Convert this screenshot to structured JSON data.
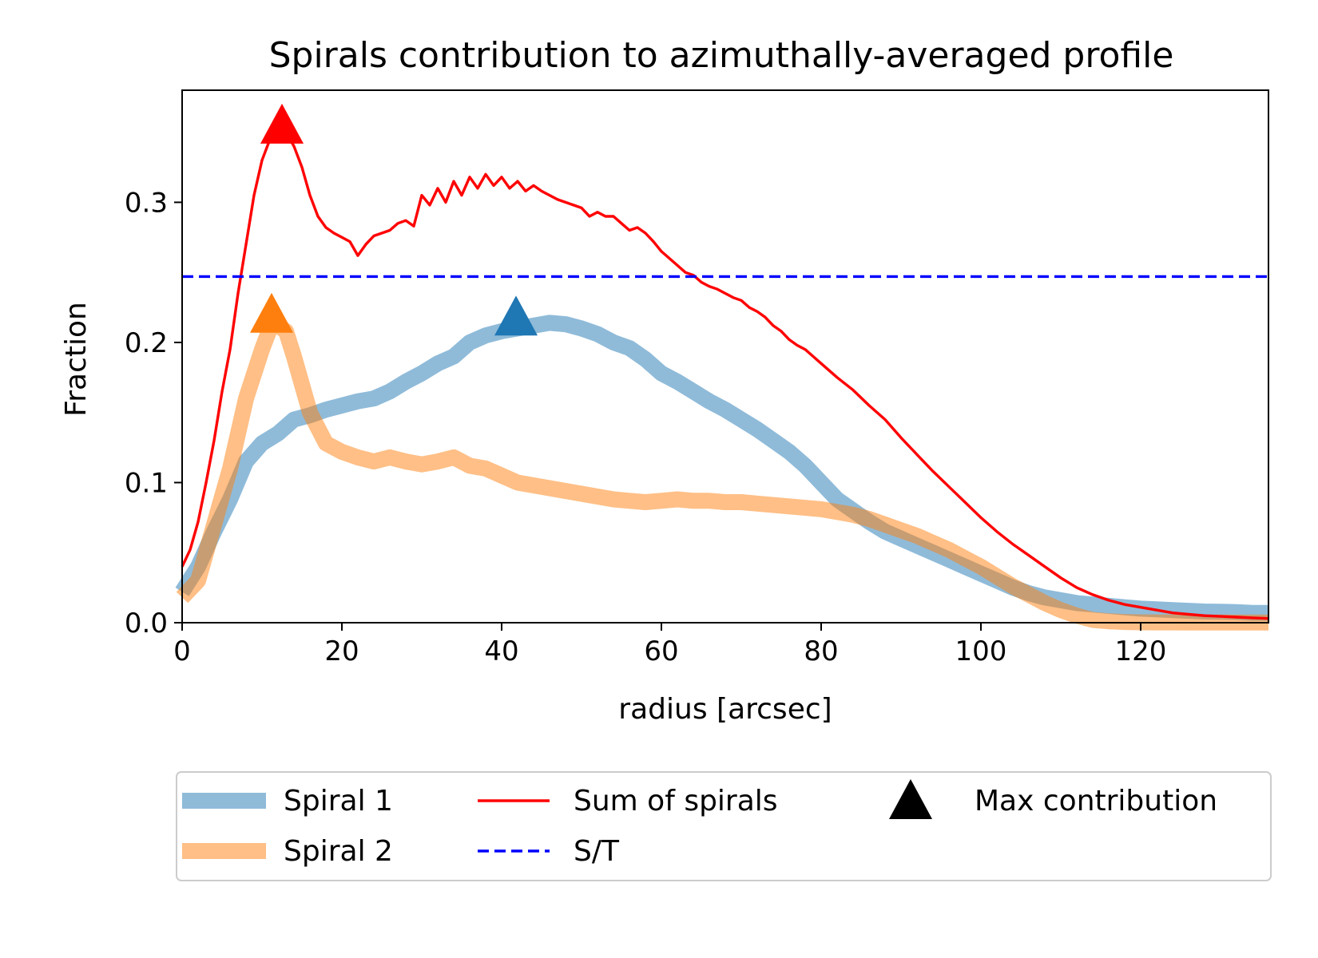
{
  "chart_data": {
    "type": "line",
    "title": "Spirals contribution to azimuthally-averaged profile",
    "xlabel": "radius [arcsec]",
    "ylabel": "Fraction",
    "xlim": [
      0,
      136
    ],
    "ylim": [
      0,
      0.38
    ],
    "x_ticks": [
      0,
      20,
      40,
      60,
      80,
      100,
      120
    ],
    "y_ticks": [
      0.0,
      0.1,
      0.2,
      0.3
    ],
    "x_tick_labels": [
      "0",
      "20",
      "40",
      "60",
      "80",
      "100",
      "120"
    ],
    "y_tick_labels": [
      "0.0",
      "0.1",
      "0.2",
      "0.3"
    ],
    "grid": false,
    "legend_position": "below",
    "series": [
      {
        "name": "Spiral 1",
        "color": "#1f77b4",
        "style": "thick-translucent",
        "x": [
          0,
          2,
          4,
          6,
          8,
          10,
          12,
          14,
          16,
          18,
          20,
          22,
          24,
          26,
          28,
          30,
          32,
          34,
          36,
          38,
          40,
          42,
          44,
          46,
          48,
          50,
          52,
          54,
          56,
          58,
          60,
          62,
          64,
          66,
          68,
          70,
          72,
          74,
          76,
          78,
          80,
          82,
          84,
          86,
          88,
          90,
          92,
          94,
          96,
          98,
          100,
          102,
          104,
          106,
          108,
          110,
          112,
          114,
          116,
          118,
          120,
          122,
          124,
          126,
          128,
          130,
          132,
          134,
          136
        ],
        "y": [
          0.022,
          0.04,
          0.065,
          0.088,
          0.115,
          0.128,
          0.135,
          0.145,
          0.148,
          0.152,
          0.155,
          0.158,
          0.16,
          0.165,
          0.172,
          0.178,
          0.185,
          0.19,
          0.2,
          0.205,
          0.208,
          0.21,
          0.212,
          0.214,
          0.213,
          0.21,
          0.206,
          0.2,
          0.196,
          0.188,
          0.178,
          0.172,
          0.165,
          0.158,
          0.152,
          0.145,
          0.138,
          0.13,
          0.122,
          0.112,
          0.1,
          0.088,
          0.08,
          0.072,
          0.065,
          0.06,
          0.055,
          0.05,
          0.045,
          0.04,
          0.035,
          0.03,
          0.025,
          0.021,
          0.018,
          0.016,
          0.014,
          0.013,
          0.012,
          0.011,
          0.01,
          0.0095,
          0.009,
          0.0085,
          0.008,
          0.0078,
          0.0075,
          0.007,
          0.007
        ]
      },
      {
        "name": "Spiral 2",
        "color": "#ff7f0e",
        "style": "thick-translucent",
        "x": [
          0,
          2,
          4,
          6,
          8,
          10,
          11,
          12,
          13,
          14,
          16,
          18,
          20,
          22,
          24,
          26,
          28,
          30,
          32,
          34,
          36,
          38,
          40,
          42,
          44,
          46,
          48,
          50,
          52,
          54,
          56,
          58,
          60,
          62,
          64,
          66,
          68,
          70,
          72,
          74,
          76,
          78,
          80,
          82,
          84,
          86,
          88,
          90,
          92,
          94,
          96,
          98,
          100,
          102,
          104,
          106,
          108,
          110,
          112,
          114,
          116,
          118,
          120,
          122,
          124,
          126,
          128,
          130,
          132,
          134,
          136
        ],
        "y": [
          0.018,
          0.03,
          0.07,
          0.11,
          0.16,
          0.195,
          0.21,
          0.212,
          0.208,
          0.19,
          0.15,
          0.128,
          0.122,
          0.118,
          0.115,
          0.118,
          0.115,
          0.113,
          0.115,
          0.118,
          0.112,
          0.11,
          0.105,
          0.1,
          0.098,
          0.096,
          0.094,
          0.092,
          0.09,
          0.088,
          0.087,
          0.086,
          0.087,
          0.088,
          0.087,
          0.087,
          0.086,
          0.086,
          0.085,
          0.084,
          0.083,
          0.082,
          0.081,
          0.079,
          0.077,
          0.074,
          0.07,
          0.066,
          0.062,
          0.057,
          0.052,
          0.046,
          0.04,
          0.033,
          0.026,
          0.02,
          0.014,
          0.009,
          0.005,
          0.002,
          0.001,
          0.0005,
          0.0003,
          0.0002,
          0.0002,
          0.0001,
          0.0001,
          0.0001,
          0.0001,
          0.0001,
          0.0001
        ]
      },
      {
        "name": "Sum of spirals",
        "color": "#ff0000",
        "style": "solid",
        "x": [
          0,
          1,
          2,
          3,
          4,
          5,
          6,
          7,
          8,
          9,
          10,
          11,
          12,
          13,
          14,
          15,
          16,
          17,
          18,
          19,
          20,
          21,
          22,
          23,
          24,
          25,
          26,
          27,
          28,
          29,
          30,
          31,
          32,
          33,
          34,
          35,
          36,
          37,
          38,
          39,
          40,
          41,
          42,
          43,
          44,
          45,
          46,
          47,
          48,
          49,
          50,
          51,
          52,
          53,
          54,
          55,
          56,
          57,
          58,
          59,
          60,
          61,
          62,
          63,
          64,
          65,
          66,
          67,
          68,
          69,
          70,
          71,
          72,
          73,
          74,
          75,
          76,
          77,
          78,
          79,
          80,
          82,
          84,
          86,
          88,
          90,
          92,
          94,
          96,
          98,
          100,
          102,
          104,
          106,
          108,
          110,
          112,
          114,
          116,
          118,
          120,
          122,
          124,
          126,
          128,
          130,
          132,
          134,
          136
        ],
        "y": [
          0.04,
          0.052,
          0.072,
          0.1,
          0.13,
          0.165,
          0.195,
          0.235,
          0.27,
          0.305,
          0.33,
          0.345,
          0.35,
          0.35,
          0.34,
          0.325,
          0.305,
          0.29,
          0.282,
          0.278,
          0.275,
          0.272,
          0.262,
          0.27,
          0.276,
          0.278,
          0.28,
          0.285,
          0.287,
          0.283,
          0.305,
          0.298,
          0.31,
          0.3,
          0.315,
          0.305,
          0.318,
          0.31,
          0.32,
          0.312,
          0.318,
          0.31,
          0.315,
          0.308,
          0.312,
          0.308,
          0.305,
          0.302,
          0.3,
          0.298,
          0.296,
          0.29,
          0.293,
          0.29,
          0.29,
          0.285,
          0.28,
          0.282,
          0.278,
          0.272,
          0.265,
          0.26,
          0.255,
          0.25,
          0.248,
          0.243,
          0.24,
          0.238,
          0.235,
          0.232,
          0.23,
          0.225,
          0.222,
          0.218,
          0.212,
          0.208,
          0.202,
          0.198,
          0.195,
          0.19,
          0.185,
          0.175,
          0.166,
          0.155,
          0.145,
          0.132,
          0.12,
          0.108,
          0.097,
          0.086,
          0.075,
          0.065,
          0.056,
          0.048,
          0.04,
          0.032,
          0.025,
          0.02,
          0.016,
          0.013,
          0.011,
          0.009,
          0.007,
          0.006,
          0.005,
          0.0045,
          0.004,
          0.0035,
          0.003
        ]
      }
    ],
    "reference_line": {
      "name": "S/T",
      "y": 0.247,
      "color": "#0000ff",
      "style": "dashed"
    },
    "markers": [
      {
        "series": "Sum of spirals",
        "x": 12.5,
        "y": 0.355,
        "color": "#ff0000"
      },
      {
        "series": "Spiral 2",
        "x": 11.2,
        "y": 0.22,
        "color": "#ff7f0e"
      },
      {
        "series": "Spiral 1",
        "x": 41.8,
        "y": 0.218,
        "color": "#1f77b4"
      }
    ],
    "legend": [
      {
        "label": "Spiral 1",
        "kind": "thick",
        "color": "#1f77b4"
      },
      {
        "label": "Spiral 2",
        "kind": "thick",
        "color": "#ff7f0e"
      },
      {
        "label": "Sum of spirals",
        "kind": "line",
        "color": "#ff0000"
      },
      {
        "label": "S/T",
        "kind": "dashed",
        "color": "#0000ff"
      },
      {
        "label": "Max contribution",
        "kind": "marker",
        "color": "#000000"
      }
    ]
  }
}
